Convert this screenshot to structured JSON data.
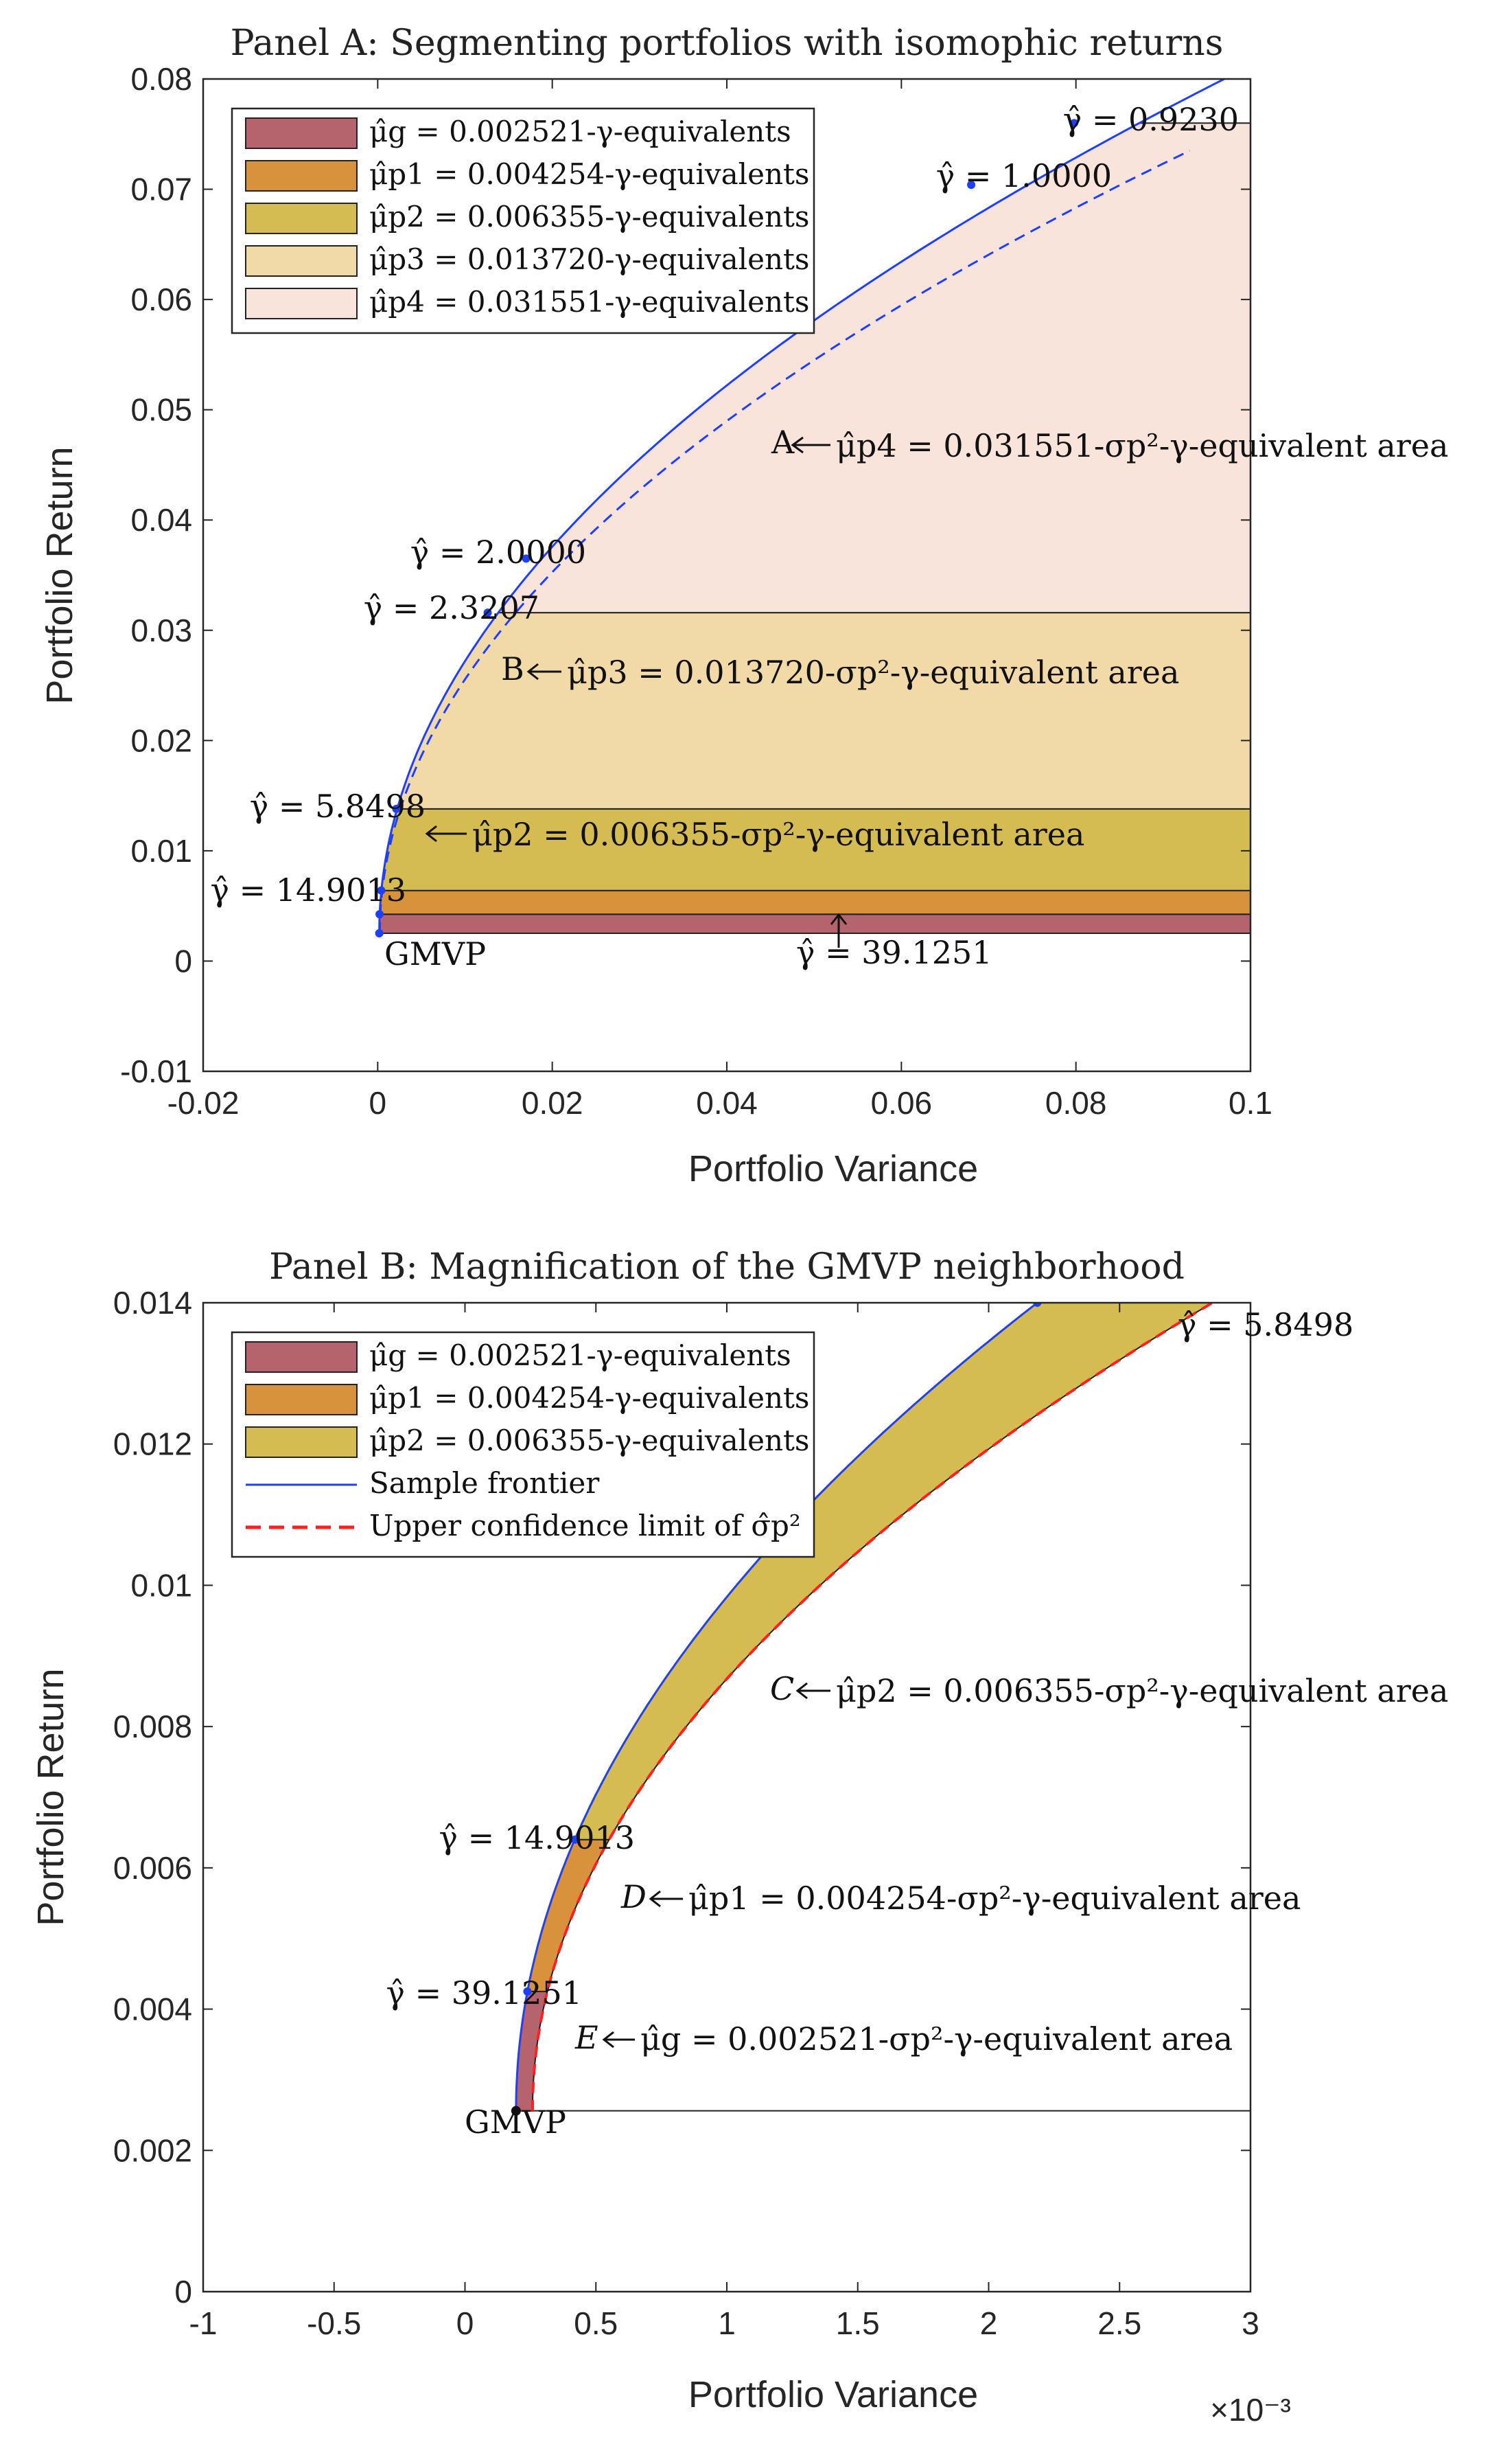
{
  "chart_data": [
    {
      "type": "area",
      "title": "Panel A: Segmenting portfolios with isomophic returns",
      "xlabel": "Portfolio Variance",
      "ylabel": "Portfolio Return",
      "xlim": [
        -0.02,
        0.1
      ],
      "ylim": [
        -0.01,
        0.08
      ],
      "xticks": [
        "-0.02",
        "0",
        "0.02",
        "0.04",
        "0.06",
        "0.08",
        "0.1"
      ],
      "yticks": [
        "-0.01",
        "0",
        "0.01",
        "0.02",
        "0.03",
        "0.04",
        "0.05",
        "0.06",
        "0.07",
        "0.08"
      ],
      "legend_position": "top-left",
      "bands": [
        {
          "name": "μ̂g = 0.002521-γ-equivalents",
          "color": "#b5636d",
          "y_low": 0.00252,
          "y_high": 0.00425
        },
        {
          "name": "μ̂p1 = 0.004254-γ-equivalents",
          "color": "#d9923c",
          "y_low": 0.00425,
          "y_high": 0.0064
        },
        {
          "name": "μ̂p2 = 0.006355-γ-equivalents",
          "color": "#d4bc52",
          "y_low": 0.0064,
          "y_high": 0.0138
        },
        {
          "name": "μ̂p3 = 0.013720-γ-equivalents",
          "color": "#f1d9a8",
          "y_low": 0.0138,
          "y_high": 0.0316
        },
        {
          "name": "μ̂p4 = 0.031551-γ-equivalents",
          "color": "#f8e4da",
          "y_low": 0.0316,
          "y_high": 0.076
        }
      ],
      "gmvp": {
        "x": 0.00018,
        "y": 0.00252
      },
      "frontier_points": [
        {
          "label": "γ̂ = 39.1251",
          "x": 0.000215,
          "y": 0.00425
        },
        {
          "label": "γ̂ = 14.9013",
          "x": 0.000405,
          "y": 0.0064
        },
        {
          "label": "γ̂ = 5.8498",
          "x": 0.00213,
          "y": 0.0138
        },
        {
          "label": "γ̂ = 2.3207",
          "x": 0.0126,
          "y": 0.0316
        },
        {
          "label": "γ̂ = 2.0000",
          "x": 0.017,
          "y": 0.0365
        },
        {
          "label": "γ̂ = 1.0000",
          "x": 0.068,
          "y": 0.0704
        },
        {
          "label": "γ̂ = 0.9230",
          "x": 0.0798,
          "y": 0.076
        }
      ],
      "annotations": [
        {
          "marker": "A",
          "text": "μ̂p4 = 0.031551-σp²-γ-equivalent area"
        },
        {
          "marker": "B",
          "text": "μ̂p3 = 0.013720-σp²-γ-equivalent area"
        },
        {
          "marker": "",
          "text": "μ̂p2 = 0.006355-σp²-γ-equivalent area"
        },
        {
          "marker": "GMVP",
          "text": ""
        },
        {
          "marker": "",
          "text": "γ̂ = 39.1251"
        }
      ]
    },
    {
      "type": "area",
      "title": "Panel B: Magnification of the GMVP neighborhood",
      "xlabel": "Portfolio Variance",
      "ylabel": "Portfolio Return",
      "x_multiplier": "×10⁻³",
      "xlim": [
        -1,
        3
      ],
      "ylim": [
        0,
        0.014
      ],
      "xticks": [
        "-1",
        "-0.5",
        "0",
        "0.5",
        "1",
        "1.5",
        "2",
        "2.5",
        "3"
      ],
      "yticks": [
        "0",
        "0.002",
        "0.004",
        "0.006",
        "0.008",
        "0.01",
        "0.012",
        "0.014"
      ],
      "legend_position": "top-left",
      "legend": [
        {
          "name": "μ̂g = 0.002521-γ-equivalents",
          "color": "#b5636d",
          "kind": "patch"
        },
        {
          "name": "μ̂p1 = 0.004254-γ-equivalents",
          "color": "#d9923c",
          "kind": "patch"
        },
        {
          "name": "μ̂p2 = 0.006355-γ-equivalents",
          "color": "#d4bc52",
          "kind": "patch"
        },
        {
          "name": "Sample frontier",
          "color": "#1f3fff",
          "kind": "line"
        },
        {
          "name": "Upper confidence limit of σ̂p²",
          "color": "#ff2020",
          "kind": "dashed"
        }
      ],
      "frontier_points": [
        {
          "label": "γ̂ = 39.1251",
          "x": 0.000235,
          "y": 0.00425
        },
        {
          "label": "γ̂ = 14.9013",
          "x": 0.000405,
          "y": 0.0064
        },
        {
          "label": "γ̂ = 5.8498",
          "x": 0.00213,
          "y": 0.014
        }
      ],
      "gmvp": {
        "x": 0.000195,
        "y": 0.00256
      },
      "annotations": [
        {
          "marker": "C",
          "text": "μ̂p2 = 0.006355-σp²-γ-equivalent area"
        },
        {
          "marker": "D",
          "text": "μ̂p1 = 0.004254-σp²-γ-equivalent area"
        },
        {
          "marker": "E",
          "text": "μ̂g = 0.002521-σp²-γ-equivalent area"
        },
        {
          "marker": "GMVP",
          "text": ""
        }
      ]
    }
  ]
}
